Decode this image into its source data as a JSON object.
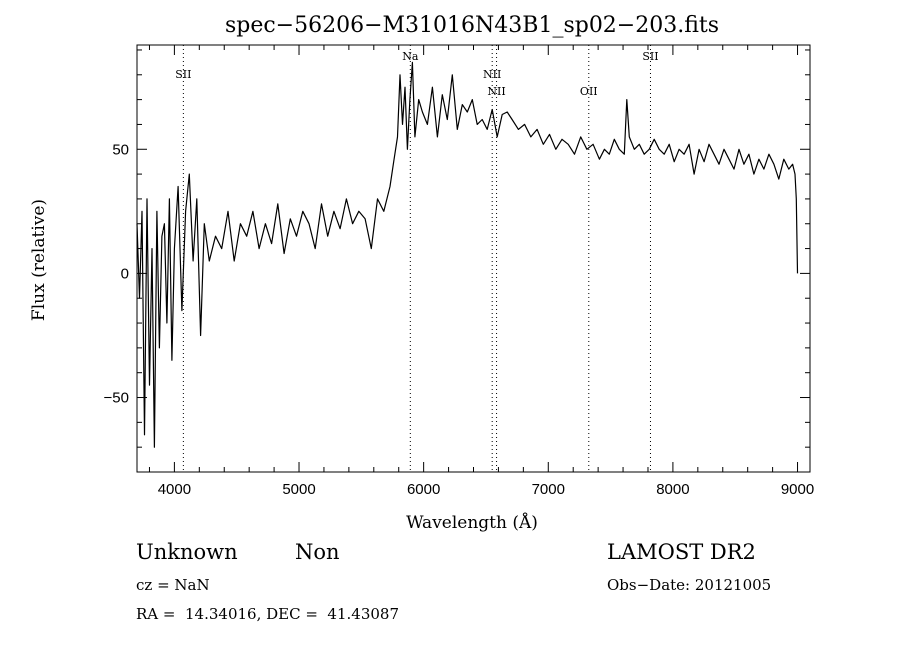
{
  "chart_data": {
    "type": "line",
    "title": "spec−56206−M31016N43B1_sp02−203.fits",
    "xlabel": "Wavelength (Å)",
    "ylabel": "Flux (relative)",
    "xlim": [
      3700,
      9100
    ],
    "ylim": [
      -80,
      92
    ],
    "x_ticks": [
      4000,
      5000,
      6000,
      7000,
      8000,
      9000
    ],
    "x_tick_labels": [
      "4000",
      "5000",
      "6000",
      "7000",
      "8000",
      "9000"
    ],
    "y_ticks": [
      -50,
      0,
      50
    ],
    "y_tick_labels": [
      "−50",
      "0",
      "50"
    ],
    "grid": false,
    "series": [
      {
        "x": [
          3700,
          3720,
          3740,
          3760,
          3780,
          3800,
          3820,
          3840,
          3860,
          3880,
          3900,
          3920,
          3940,
          3960,
          3980,
          4000,
          4030,
          4060,
          4090,
          4120,
          4150,
          4180,
          4210,
          4240,
          4280,
          4330,
          4380,
          4430,
          4480,
          4530,
          4580,
          4630,
          4680,
          4730,
          4780,
          4830,
          4880,
          4930,
          4980,
          5030,
          5080,
          5130,
          5180,
          5230,
          5280,
          5330,
          5380,
          5430,
          5480,
          5530,
          5580,
          5630,
          5680,
          5730,
          5760,
          5790,
          5810,
          5830,
          5850,
          5870,
          5890,
          5910,
          5930,
          5960,
          5990,
          6030,
          6070,
          6110,
          6150,
          6190,
          6230,
          6270,
          6310,
          6350,
          6390,
          6430,
          6470,
          6510,
          6550,
          6590,
          6630,
          6670,
          6710,
          6760,
          6810,
          6860,
          6910,
          6960,
          7010,
          7060,
          7110,
          7160,
          7210,
          7260,
          7310,
          7360,
          7410,
          7450,
          7490,
          7530,
          7570,
          7610,
          7630,
          7650,
          7690,
          7730,
          7770,
          7810,
          7850,
          7890,
          7930,
          7970,
          8010,
          8050,
          8090,
          8130,
          8170,
          8210,
          8250,
          8290,
          8330,
          8370,
          8410,
          8450,
          8490,
          8530,
          8570,
          8610,
          8650,
          8690,
          8730,
          8770,
          8810,
          8850,
          8890,
          8930,
          8960,
          8980,
          8990,
          9000
        ],
        "y": [
          20,
          -10,
          25,
          -65,
          30,
          -45,
          10,
          -70,
          25,
          -30,
          15,
          20,
          -20,
          30,
          -35,
          10,
          35,
          -15,
          25,
          40,
          5,
          30,
          -25,
          20,
          5,
          15,
          10,
          25,
          5,
          20,
          15,
          25,
          10,
          20,
          12,
          28,
          8,
          22,
          15,
          25,
          20,
          10,
          28,
          15,
          25,
          18,
          30,
          20,
          25,
          22,
          10,
          30,
          25,
          35,
          45,
          55,
          80,
          60,
          75,
          50,
          70,
          85,
          55,
          70,
          65,
          60,
          75,
          55,
          72,
          62,
          80,
          58,
          68,
          65,
          70,
          60,
          62,
          58,
          66,
          55,
          64,
          65,
          62,
          58,
          60,
          55,
          58,
          52,
          56,
          50,
          54,
          52,
          48,
          55,
          50,
          52,
          46,
          50,
          48,
          54,
          50,
          48,
          70,
          55,
          50,
          52,
          48,
          50,
          54,
          50,
          48,
          52,
          45,
          50,
          48,
          52,
          40,
          50,
          45,
          52,
          48,
          44,
          50,
          46,
          42,
          50,
          44,
          48,
          40,
          46,
          42,
          48,
          44,
          38,
          46,
          42,
          44,
          40,
          30,
          0
        ]
      }
    ],
    "lines": [
      {
        "label": "SII",
        "x": 4072
      },
      {
        "label": "Na",
        "x": 5893
      },
      {
        "label": "NII",
        "x": 6550
      },
      {
        "label": "NII",
        "x": 6585
      },
      {
        "label": "OII",
        "x": 7325
      },
      {
        "label": "SII",
        "x": 7820
      }
    ]
  },
  "info": {
    "class_text": "Unknown",
    "subclass_text": "Non",
    "survey": "LAMOST DR2",
    "cz_text": "cz = NaN",
    "obs_date": "Obs−Date: 20121005",
    "coords": "RA =  14.34016, DEC =  41.43087"
  }
}
